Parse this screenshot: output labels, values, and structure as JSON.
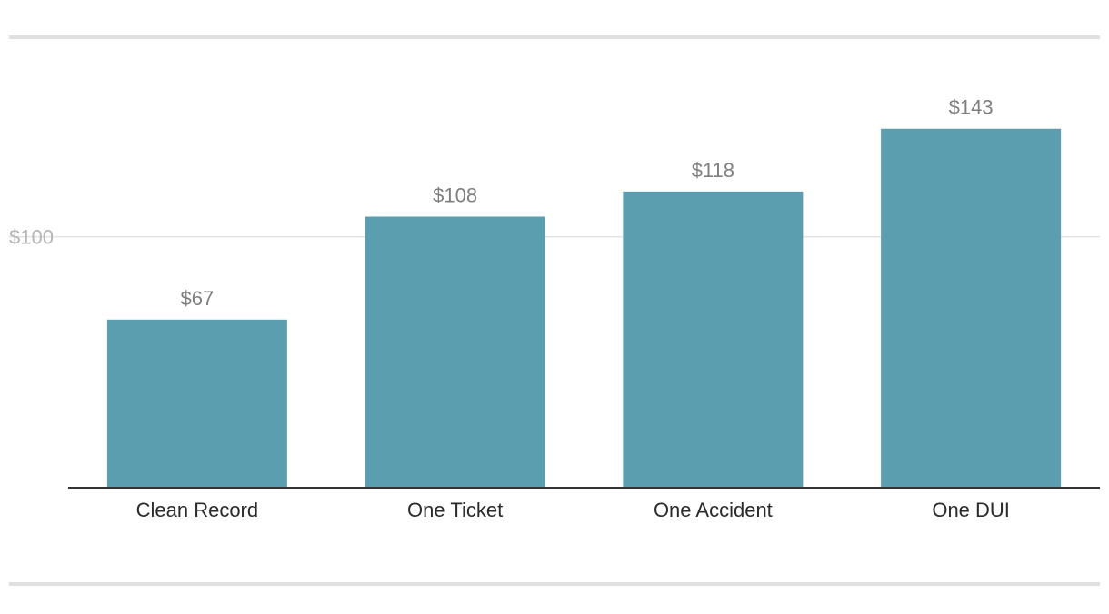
{
  "chart_data": {
    "type": "bar",
    "categories": [
      "Clean Record",
      "One Ticket",
      "One Accident",
      "One DUI"
    ],
    "values": [
      67,
      108,
      118,
      143
    ],
    "value_labels": [
      "$67",
      "$108",
      "$118",
      "$143"
    ],
    "yticks": [
      100
    ],
    "ytick_labels": [
      "$100"
    ],
    "ylim": [
      0,
      165
    ],
    "grid": true,
    "bar_color": "#5b9eb0",
    "gridline_color": "#e3e3e3",
    "baseline_color": "#333333"
  }
}
